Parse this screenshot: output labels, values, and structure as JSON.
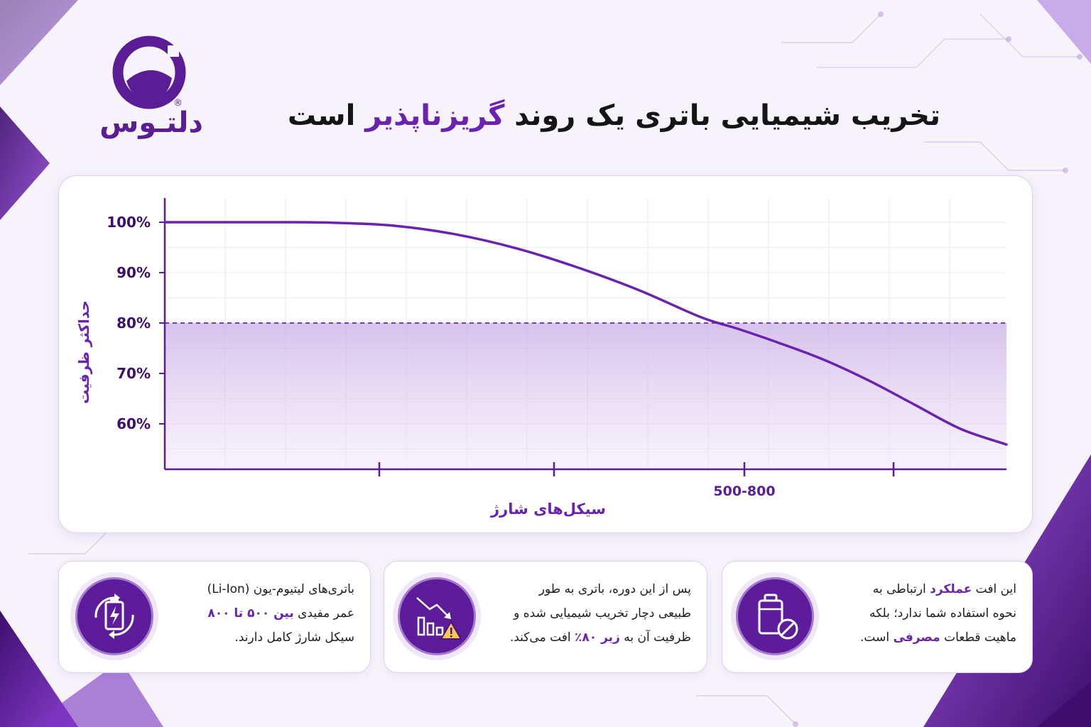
{
  "brand": {
    "name": "دلتـوس",
    "primary_color": "#6a22b0",
    "dark_color": "#4a1580"
  },
  "header": {
    "title_part1": "تخریب شیمیایی باتری یک روند",
    "title_highlight": "گریزناپذیر",
    "title_part2": "است"
  },
  "chart_data": {
    "type": "line",
    "ylabel": "حداکثر ظرفیت",
    "xlabel": "سیکل‌های شارژ",
    "y_ticks": [
      "100%",
      "90%",
      "80%",
      "70%",
      "60%"
    ],
    "x_tick_label": "500-800",
    "threshold": 80,
    "ylim": [
      55,
      105
    ],
    "series": [
      {
        "points": [
          [
            0,
            100
          ],
          [
            0.08,
            100
          ],
          [
            0.15,
            100
          ],
          [
            0.22,
            99.9
          ],
          [
            0.3,
            99.3
          ],
          [
            0.38,
            97.6
          ],
          [
            0.46,
            94.8
          ],
          [
            0.54,
            91
          ],
          [
            0.62,
            86.5
          ],
          [
            0.7,
            81.2
          ],
          [
            0.75,
            78.8
          ],
          [
            0.8,
            76.2
          ],
          [
            0.86,
            72.8
          ],
          [
            0.92,
            68.6
          ],
          [
            0.98,
            63.8
          ],
          [
            1.04,
            59
          ],
          [
            1.1,
            55.9
          ]
        ]
      }
    ]
  },
  "cards": [
    {
      "icon": "battery-cycle-icon",
      "line1": "باتری‌های لیتیوم-یون (Li-Ion)",
      "line2_a": "عمر مفیدی",
      "line2_hl": "بین ۵۰۰ تا ۸۰۰",
      "line3": "سیکل شارژ کامل دارند."
    },
    {
      "icon": "chart-down-warning-icon",
      "line1": "پس از این دوره، باتری به طور",
      "line2": "طبیعی دچار تخریب شیمیایی شده و",
      "line3_a": "ظرفیت آن به",
      "line3_hl": "زیر ۸۰٪",
      "line3_b": "افت می‌کند."
    },
    {
      "icon": "battery-no-icon",
      "line1_a": "این افت",
      "line1_hl": "عملکرد",
      "line1_b": "ارتباطی به",
      "line2": "نحوه استفاده شما ندارد؛ بلکه",
      "line3_a": "ماهیت قطعات",
      "line3_hl": "مصرفی",
      "line3_b": "است."
    }
  ]
}
